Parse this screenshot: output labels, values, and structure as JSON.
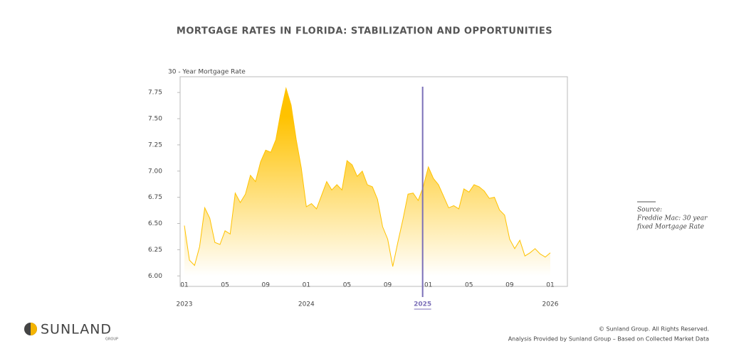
{
  "chart_data": {
    "type": "area",
    "title": "MORTGAGE RATES IN FLORIDA: STABILIZATION AND OPPORTUNITIES",
    "y_label": "30 - Year Mortgage Rate",
    "categories": [
      "01",
      null,
      null,
      null,
      null,
      null,
      null,
      null,
      "05",
      null,
      null,
      null,
      null,
      null,
      null,
      null,
      "09",
      null,
      null,
      null,
      null,
      null,
      null,
      null,
      "01",
      null,
      null,
      null,
      null,
      null,
      null,
      null,
      "05",
      null,
      null,
      null,
      null,
      null,
      null,
      null,
      "09",
      null,
      null,
      null,
      null,
      null,
      null,
      null,
      "01",
      null,
      null,
      null,
      null,
      null,
      null,
      null,
      "05",
      null,
      null,
      null,
      null,
      null,
      null,
      null,
      "09",
      null,
      null,
      null,
      null,
      null,
      null,
      null,
      "01"
    ],
    "years": [
      "2023",
      "2024",
      "2025",
      "2026"
    ],
    "highlight_year": "2025",
    "values": [
      6.48,
      6.15,
      6.1,
      6.28,
      6.65,
      6.55,
      6.32,
      6.3,
      6.43,
      6.4,
      6.79,
      6.7,
      6.78,
      6.96,
      6.9,
      7.09,
      7.2,
      7.18,
      7.3,
      7.57,
      7.79,
      7.63,
      7.3,
      7.03,
      6.66,
      6.69,
      6.64,
      6.77,
      6.9,
      6.82,
      6.87,
      6.82,
      7.1,
      7.06,
      6.95,
      7.0,
      6.87,
      6.85,
      6.73,
      6.47,
      6.35,
      6.09,
      6.32,
      6.54,
      6.78,
      6.79,
      6.72,
      6.85,
      7.04,
      6.93,
      6.87,
      6.76,
      6.65,
      6.67,
      6.64,
      6.83,
      6.8,
      6.87,
      6.85,
      6.81,
      6.74,
      6.75,
      6.63,
      6.58,
      6.35,
      6.26,
      6.34,
      6.19,
      6.22,
      6.26,
      6.21,
      6.18,
      6.22
    ],
    "color": "#ffc200",
    "highlight_color": "#7b6fb8",
    "ylim": [
      5.9,
      7.9
    ],
    "yticks": [
      {
        "value": 6,
        "label": "6.00"
      },
      {
        "value": 6.25,
        "label": "6.25"
      },
      {
        "value": 6.5,
        "label": "6.50"
      },
      {
        "value": 6.75,
        "label": "6.75"
      },
      {
        "value": 7,
        "label": "7.00"
      },
      {
        "value": 7.25,
        "label": "7.25"
      },
      {
        "value": 7.5,
        "label": "7.50"
      },
      {
        "value": 7.75,
        "label": "7.75"
      }
    ],
    "source_heading": "Source:",
    "source_lines": [
      "Freddie Mac: 30 year",
      "fixed Mortgage Rate"
    ]
  },
  "footer": {
    "logo": "SUNLAND",
    "logo_sub": "GROUP",
    "copyright": "© Sunland Group. All Rights Reserved.",
    "analysis": "Analysis Provided by Sunland Group – Based on Collected Market Data"
  }
}
